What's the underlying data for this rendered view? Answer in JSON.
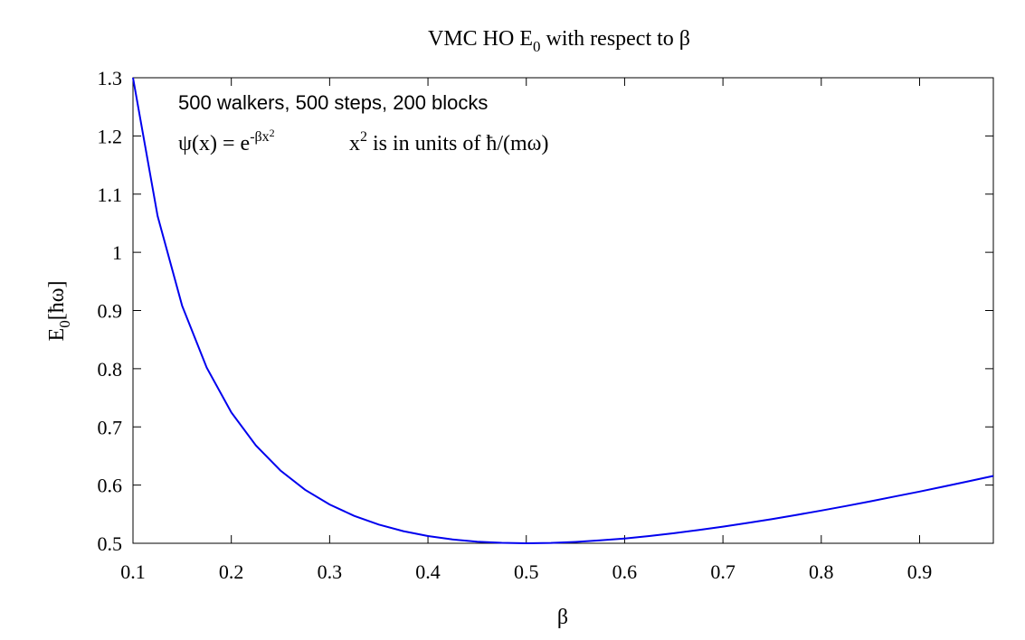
{
  "chart_data": {
    "type": "line",
    "title": "VMC HO E",
    "title_sub": "0",
    "title_tail": " with respect to β",
    "xlabel": "β",
    "ylabel": "E",
    "ylabel_sub": "0",
    "ylabel_tail": "[ħω]",
    "xlim": [
      0.1,
      0.975
    ],
    "ylim": [
      0.5,
      1.3
    ],
    "x_ticks": [
      "0.1",
      "0.2",
      "0.3",
      "0.4",
      "0.5",
      "0.6",
      "0.7",
      "0.8",
      "0.9"
    ],
    "y_ticks": [
      "0.5",
      "0.6",
      "0.7",
      "0.8",
      "0.9",
      "1",
      "1.1",
      "1.2",
      "1.3"
    ],
    "grid": false,
    "series": [
      {
        "color": "#0000ee",
        "x": [
          0.1,
          0.125,
          0.15,
          0.175,
          0.2,
          0.225,
          0.25,
          0.275,
          0.3,
          0.325,
          0.35,
          0.375,
          0.4,
          0.425,
          0.45,
          0.475,
          0.5,
          0.525,
          0.55,
          0.575,
          0.6,
          0.625,
          0.65,
          0.675,
          0.7,
          0.725,
          0.75,
          0.775,
          0.8,
          0.825,
          0.85,
          0.875,
          0.9,
          0.925,
          0.95,
          0.975
        ],
        "y": [
          1.3,
          1.0625,
          0.9083,
          0.8018,
          0.725,
          0.6681,
          0.625,
          0.592,
          0.5667,
          0.5471,
          0.5321,
          0.5208,
          0.5125,
          0.5066,
          0.5028,
          0.5007,
          0.5,
          0.5006,
          0.5023,
          0.5049,
          0.5083,
          0.5125,
          0.5173,
          0.5227,
          0.5286,
          0.5349,
          0.5417,
          0.5488,
          0.5563,
          0.564,
          0.5721,
          0.5804,
          0.5889,
          0.5977,
          0.6066,
          0.6157
        ]
      }
    ],
    "annotations": {
      "line1": "500 walkers, 500 steps, 200 blocks",
      "psi_lhs": "ψ(x) = e",
      "psi_exp": "-βx",
      "psi_exp_sq": "2",
      "units_x": "x",
      "units_sq": "2",
      "units_tail": " is in units of ħ/(mω)"
    }
  }
}
